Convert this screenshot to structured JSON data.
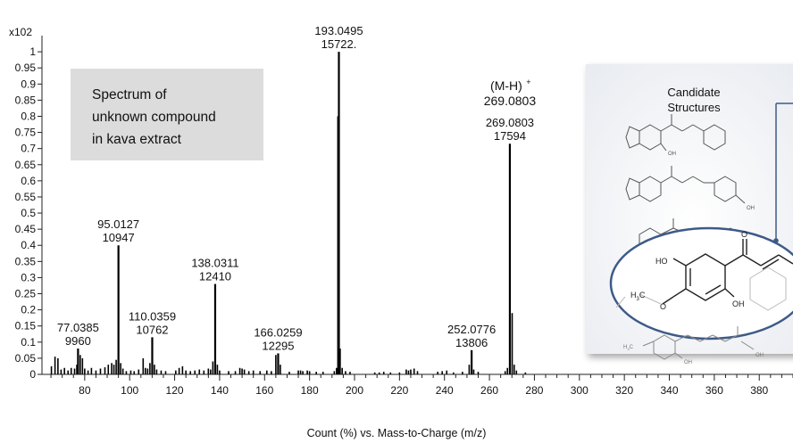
{
  "chart_data": {
    "type": "bar",
    "title": "",
    "multiplier_label": "x102",
    "xlabel": "Count (%) vs. Mass-to-Charge (m/z)",
    "ylabel": "",
    "xlim": [
      61,
      395
    ],
    "ylim": [
      0,
      1.05
    ],
    "xticks": [
      80,
      100,
      120,
      140,
      160,
      180,
      200,
      220,
      240,
      260,
      280,
      300,
      320,
      340,
      360,
      380
    ],
    "yticks": [
      {
        "v": 0,
        "t": "0"
      },
      {
        "v": 0.05,
        "t": "0.05"
      },
      {
        "v": 0.1,
        "t": "0.1"
      },
      {
        "v": 0.15,
        "t": "0.15"
      },
      {
        "v": 0.2,
        "t": "0.2"
      },
      {
        "v": 0.25,
        "t": "0.25"
      },
      {
        "v": 0.3,
        "t": "0.3"
      },
      {
        "v": 0.35,
        "t": "0.35"
      },
      {
        "v": 0.4,
        "t": "0.4"
      },
      {
        "v": 0.45,
        "t": "0.45"
      },
      {
        "v": 0.5,
        "t": "0.5"
      },
      {
        "v": 0.55,
        "t": "0.55"
      },
      {
        "v": 0.6,
        "t": "0.6"
      },
      {
        "v": 0.65,
        "t": "0.65"
      },
      {
        "v": 0.7,
        "t": "0.7"
      },
      {
        "v": 0.75,
        "t": "0.75"
      },
      {
        "v": 0.8,
        "t": "0.8"
      },
      {
        "v": 0.85,
        "t": "0.85"
      },
      {
        "v": 0.9,
        "t": "0.9"
      },
      {
        "v": 0.95,
        "t": "0.95"
      },
      {
        "v": 1,
        "t": "1"
      }
    ],
    "labeled_peaks": [
      {
        "mz": 77.0385,
        "y": 0.08,
        "mz_label": "77.0385",
        "count_label": "9960"
      },
      {
        "mz": 95.0127,
        "y": 0.4,
        "mz_label": "95.0127",
        "count_label": "10947"
      },
      {
        "mz": 110.0359,
        "y": 0.115,
        "mz_label": "110.0359",
        "count_label": "10762"
      },
      {
        "mz": 138.0311,
        "y": 0.28,
        "mz_label": "138.0311",
        "count_label": "12410"
      },
      {
        "mz": 166.0259,
        "y": 0.065,
        "mz_label": "166.0259",
        "count_label": "12295"
      },
      {
        "mz": 193.0495,
        "y": 1.0,
        "mz_label": "193.0495",
        "count_label": "15722."
      },
      {
        "mz": 252.0776,
        "y": 0.075,
        "mz_label": "252.0776",
        "count_label": "13806"
      },
      {
        "mz": 269.0803,
        "y": 0.715,
        "mz_label": "269.0803",
        "count_label": "17594",
        "ion_label": "(M-H)",
        "ion_superscript": "+",
        "ion_mz_label": "269.0803"
      }
    ],
    "minor_peaks": [
      {
        "mz": 65.2,
        "y": 0.025
      },
      {
        "mz": 66.8,
        "y": 0.055
      },
      {
        "mz": 68.1,
        "y": 0.05
      },
      {
        "mz": 69.5,
        "y": 0.015
      },
      {
        "mz": 71.0,
        "y": 0.02
      },
      {
        "mz": 72.6,
        "y": 0.012
      },
      {
        "mz": 74.0,
        "y": 0.02
      },
      {
        "mz": 75.5,
        "y": 0.018
      },
      {
        "mz": 76.5,
        "y": 0.03
      },
      {
        "mz": 78.0,
        "y": 0.06
      },
      {
        "mz": 79.0,
        "y": 0.05
      },
      {
        "mz": 80.0,
        "y": 0.018
      },
      {
        "mz": 81.5,
        "y": 0.012
      },
      {
        "mz": 83.0,
        "y": 0.02
      },
      {
        "mz": 85.0,
        "y": 0.012
      },
      {
        "mz": 87.0,
        "y": 0.018
      },
      {
        "mz": 89.0,
        "y": 0.022
      },
      {
        "mz": 90.5,
        "y": 0.03
      },
      {
        "mz": 92.0,
        "y": 0.035
      },
      {
        "mz": 93.0,
        "y": 0.03
      },
      {
        "mz": 94.0,
        "y": 0.045
      },
      {
        "mz": 96.0,
        "y": 0.035
      },
      {
        "mz": 97.0,
        "y": 0.018
      },
      {
        "mz": 98.5,
        "y": 0.01
      },
      {
        "mz": 100.5,
        "y": 0.012
      },
      {
        "mz": 102.0,
        "y": 0.01
      },
      {
        "mz": 104.0,
        "y": 0.015
      },
      {
        "mz": 106.0,
        "y": 0.05
      },
      {
        "mz": 107.0,
        "y": 0.02
      },
      {
        "mz": 108.0,
        "y": 0.018
      },
      {
        "mz": 109.0,
        "y": 0.035
      },
      {
        "mz": 111.0,
        "y": 0.03
      },
      {
        "mz": 112.0,
        "y": 0.015
      },
      {
        "mz": 114.0,
        "y": 0.012
      },
      {
        "mz": 116.0,
        "y": 0.01
      },
      {
        "mz": 120.5,
        "y": 0.012
      },
      {
        "mz": 122.0,
        "y": 0.02
      },
      {
        "mz": 123.5,
        "y": 0.025
      },
      {
        "mz": 125.0,
        "y": 0.012
      },
      {
        "mz": 127.0,
        "y": 0.01
      },
      {
        "mz": 129.0,
        "y": 0.012
      },
      {
        "mz": 131.0,
        "y": 0.015
      },
      {
        "mz": 133.0,
        "y": 0.012
      },
      {
        "mz": 135.0,
        "y": 0.018
      },
      {
        "mz": 136.0,
        "y": 0.015
      },
      {
        "mz": 137.0,
        "y": 0.04
      },
      {
        "mz": 139.0,
        "y": 0.03
      },
      {
        "mz": 140.0,
        "y": 0.012
      },
      {
        "mz": 144.0,
        "y": 0.01
      },
      {
        "mz": 147.0,
        "y": 0.01
      },
      {
        "mz": 149.0,
        "y": 0.02
      },
      {
        "mz": 150.0,
        "y": 0.018
      },
      {
        "mz": 151.0,
        "y": 0.015
      },
      {
        "mz": 153.0,
        "y": 0.01
      },
      {
        "mz": 155.0,
        "y": 0.012
      },
      {
        "mz": 158.0,
        "y": 0.01
      },
      {
        "mz": 161.0,
        "y": 0.012
      },
      {
        "mz": 163.0,
        "y": 0.01
      },
      {
        "mz": 165.0,
        "y": 0.06
      },
      {
        "mz": 167.0,
        "y": 0.03
      },
      {
        "mz": 171.0,
        "y": 0.008
      },
      {
        "mz": 175.0,
        "y": 0.012
      },
      {
        "mz": 176.0,
        "y": 0.012
      },
      {
        "mz": 177.0,
        "y": 0.01
      },
      {
        "mz": 179.0,
        "y": 0.012
      },
      {
        "mz": 180.0,
        "y": 0.01
      },
      {
        "mz": 183.0,
        "y": 0.008
      },
      {
        "mz": 186.0,
        "y": 0.008
      },
      {
        "mz": 191.0,
        "y": 0.01
      },
      {
        "mz": 192.0,
        "y": 0.02
      },
      {
        "mz": 192.6,
        "y": 0.8
      },
      {
        "mz": 193.6,
        "y": 0.08
      },
      {
        "mz": 194.5,
        "y": 0.02
      },
      {
        "mz": 196.0,
        "y": 0.01
      },
      {
        "mz": 198.0,
        "y": 0.008
      },
      {
        "mz": 209.0,
        "y": 0.006
      },
      {
        "mz": 211.0,
        "y": 0.006
      },
      {
        "mz": 213.0,
        "y": 0.008
      },
      {
        "mz": 216.0,
        "y": 0.006
      },
      {
        "mz": 220.0,
        "y": 0.006
      },
      {
        "mz": 223.0,
        "y": 0.015
      },
      {
        "mz": 224.0,
        "y": 0.012
      },
      {
        "mz": 225.0,
        "y": 0.015
      },
      {
        "mz": 226.5,
        "y": 0.018
      },
      {
        "mz": 228.0,
        "y": 0.01
      },
      {
        "mz": 237.0,
        "y": 0.008
      },
      {
        "mz": 239.0,
        "y": 0.01
      },
      {
        "mz": 241.0,
        "y": 0.012
      },
      {
        "mz": 244.0,
        "y": 0.006
      },
      {
        "mz": 248.0,
        "y": 0.008
      },
      {
        "mz": 251.0,
        "y": 0.03
      },
      {
        "mz": 253.0,
        "y": 0.015
      },
      {
        "mz": 255.0,
        "y": 0.008
      },
      {
        "mz": 267.0,
        "y": 0.01
      },
      {
        "mz": 268.0,
        "y": 0.02
      },
      {
        "mz": 270.1,
        "y": 0.19
      },
      {
        "mz": 271.0,
        "y": 0.03
      },
      {
        "mz": 272.0,
        "y": 0.012
      },
      {
        "mz": 276.0,
        "y": 0.006
      }
    ],
    "annotation_box": {
      "lines": [
        "Spectrum of",
        "unknown compound",
        "in kava extract"
      ],
      "fill": "#dcdcdc"
    },
    "candidate_panel": {
      "title_lines": [
        "Candidate",
        "Structures"
      ],
      "atom_labels": {
        "oh": "OH",
        "ho": "HO",
        "o": "O",
        "h3c": "H",
        "h3c_sub": "3",
        "h3c_c": "C"
      }
    }
  }
}
